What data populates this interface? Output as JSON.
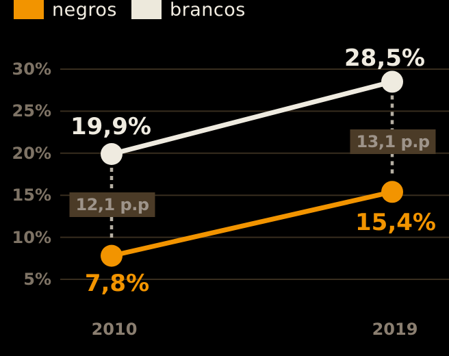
{
  "legend": {
    "items": [
      {
        "label": "negros",
        "color": "#F29400"
      },
      {
        "label": "brancos",
        "color": "#EDE9DC"
      }
    ]
  },
  "chart_data": {
    "type": "line",
    "x": [
      "2010",
      "2019"
    ],
    "series": [
      {
        "name": "brancos",
        "color": "#EFEBE0",
        "values": [
          19.9,
          28.5
        ],
        "point_labels": [
          "19,9%",
          "28,5%"
        ]
      },
      {
        "name": "negros",
        "color": "#F29400",
        "values": [
          7.8,
          15.4
        ],
        "point_labels": [
          "7,8%",
          "15,4%"
        ]
      }
    ],
    "gap_annotations": [
      {
        "x": "2010",
        "label": "12,1 p.p"
      },
      {
        "x": "2019",
        "label": "13,1 p.p"
      }
    ],
    "yticks": [
      5,
      10,
      15,
      20,
      25,
      30
    ],
    "ytick_labels": [
      "5%",
      "10%",
      "15%",
      "20%",
      "25%",
      "30%"
    ],
    "ylim": [
      5,
      30
    ],
    "grid": true,
    "legend_position": "top-left",
    "colors": {
      "background": "#000000",
      "gridline": "#382e1f",
      "tick_label": "#7e7365",
      "x_label": "#8a7e70",
      "gap_box_bg": "#4b3b27",
      "gap_box_text": "#9e948a",
      "dashed_line": "#b5afa3"
    }
  }
}
